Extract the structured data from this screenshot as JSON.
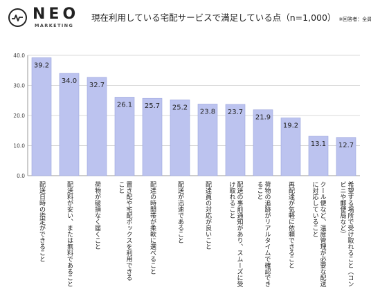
{
  "header": {
    "logo_name": "NEO",
    "logo_sub": "MARKETING",
    "title": "現在利用している宅配サービスで満足している点（n=1,000）",
    "note": "※回答者：全員"
  },
  "colors": {
    "bar": "#bcc3ef",
    "bar_stroke": "#9aa3dc",
    "grid": "#d8d8d8",
    "axis": "#999999"
  },
  "chart_data": {
    "type": "bar",
    "title": "現在利用している宅配サービスで満足している点（n=1,000）",
    "xlabel": "",
    "ylabel": "",
    "ylim": [
      0,
      40
    ],
    "yticks": [
      "0.0",
      "10.0",
      "20.0",
      "30.0",
      "40.0"
    ],
    "grid": true,
    "categories": [
      "配送日時の指定ができること",
      "配送料が安い、または無料であること",
      "荷物が破損なく届くこと",
      "置き配や宅配ボックスを利用できること",
      "配達の時間帯が柔軟に選べること",
      "配送が迅速であること",
      "配達員の対応が良いこと",
      "配送の事前通知があり、スムーズに受け取れること",
      "荷物の追跡がリアルタイムで確認できること",
      "再配達が気軽に依頼できること",
      "クール便など、温度管理が必要な配送に対応していること",
      "希望する場所で受け取れること（コンビニや郵便局など）"
    ],
    "values": [
      39.2,
      34.0,
      32.7,
      26.1,
      25.7,
      25.2,
      23.8,
      23.7,
      21.9,
      19.2,
      13.1,
      12.7
    ],
    "value_labels": [
      "39.2",
      "34.0",
      "32.7",
      "26.1",
      "25.7",
      "25.2",
      "23.8",
      "23.7",
      "21.9",
      "19.2",
      "13.1",
      "12.7"
    ],
    "category_lines": [
      [
        "配送日時の指定ができること"
      ],
      [
        "配送料が安い、または無料であること"
      ],
      [
        "荷物が破損なく届くこと"
      ],
      [
        "置き配や宅配ボックスを利用できる",
        "こと"
      ],
      [
        "配達の時間帯が柔軟に選べること"
      ],
      [
        "配送が迅速であること"
      ],
      [
        "配達員の対応が良いこと"
      ],
      [
        "配送の事前通知があり、スムーズに受",
        "け取れること"
      ],
      [
        "荷物の追跡がリアルタイムで確認でき",
        "ること"
      ],
      [
        "再配達が気軽に依頼できること"
      ],
      [
        "クール便など、温度管理が必要な配送",
        "に対応していること"
      ],
      [
        "希望する場所で受け取れること（コン",
        "ビニや郵便局など）"
      ]
    ]
  }
}
